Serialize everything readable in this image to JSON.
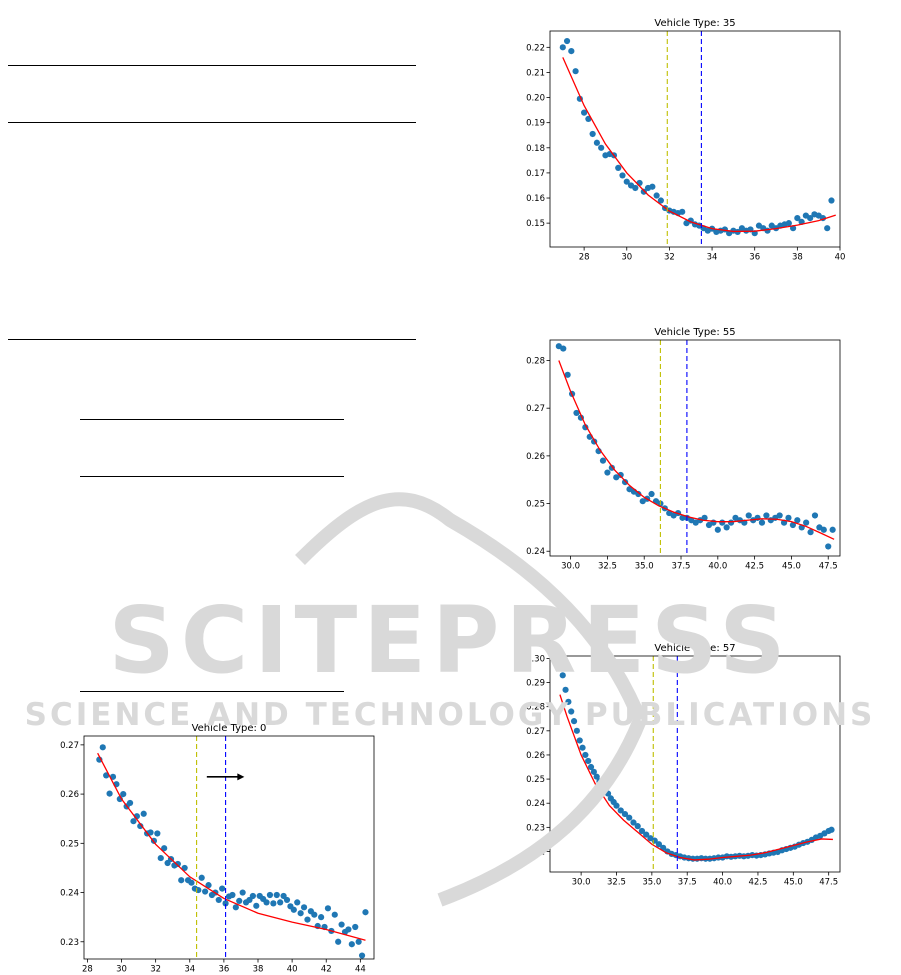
{
  "watermark": {
    "line1": "SCITEPRESS",
    "line2": "SCIENCE AND TECHNOLOGY PUBLICATIONS"
  },
  "colors": {
    "points": "#1f77b4",
    "fit": "#ff0000",
    "yellow_line": "#bfbf00",
    "blue_line": "#0000ff"
  },
  "chart_data": [
    {
      "type": "scatter",
      "title": "Vehicle Type: 0",
      "xlim": [
        27.8,
        44.8
      ],
      "ylim": [
        0.2265,
        0.2718
      ],
      "xticks": [
        "28",
        "30",
        "32",
        "34",
        "36",
        "38",
        "40",
        "42",
        "44"
      ],
      "yticks": [
        "0.23",
        "0.24",
        "0.25",
        "0.26",
        "0.27"
      ],
      "vlines": {
        "yellow": 34.4,
        "blue": 36.1
      },
      "arrow": {
        "from": 35.0,
        "to": 37.2,
        "y": 0.2635
      },
      "fit": {
        "x": [
          28.6,
          30,
          32,
          34,
          36,
          38,
          40,
          42,
          44.3
        ],
        "y": [
          0.2683,
          0.259,
          0.2498,
          0.2432,
          0.2388,
          0.2358,
          0.234,
          0.2325,
          0.2303
        ]
      },
      "series": [
        {
          "x": [
            28.7,
            28.9,
            29.1,
            29.3,
            29.5,
            29.7,
            29.9,
            30.1,
            30.3,
            30.5,
            30.7,
            30.9,
            31.1,
            31.3,
            31.5,
            31.7,
            31.9,
            32.1,
            32.3,
            32.5,
            32.7,
            32.9,
            33.1,
            33.3,
            33.5,
            33.7,
            33.9,
            34.1,
            34.3,
            34.5,
            34.7,
            34.9,
            35.1,
            35.3,
            35.5,
            35.7,
            35.9,
            36.1,
            36.3,
            36.5,
            36.7,
            36.9,
            37.1,
            37.3,
            37.5,
            37.7,
            37.9,
            38.1,
            38.3,
            38.5,
            38.7,
            38.9,
            39.1,
            39.3,
            39.5,
            39.7,
            39.9,
            40.1,
            40.3,
            40.5,
            40.7,
            40.9,
            41.1,
            41.3,
            41.5,
            41.7,
            41.9,
            42.1,
            42.3,
            42.5,
            42.7,
            42.9,
            43.1,
            43.3,
            43.5,
            43.7,
            43.9,
            44.1,
            44.3
          ],
          "y": [
            0.267,
            0.2695,
            0.2638,
            0.2601,
            0.2635,
            0.262,
            0.259,
            0.26,
            0.2575,
            0.2582,
            0.2545,
            0.2555,
            0.2535,
            0.256,
            0.252,
            0.2522,
            0.2505,
            0.252,
            0.247,
            0.249,
            0.246,
            0.2468,
            0.2455,
            0.2458,
            0.2425,
            0.245,
            0.2425,
            0.242,
            0.2408,
            0.2405,
            0.243,
            0.2402,
            0.2415,
            0.2395,
            0.24,
            0.2385,
            0.2408,
            0.2378,
            0.2392,
            0.2395,
            0.237,
            0.2383,
            0.24,
            0.238,
            0.2385,
            0.2393,
            0.2373,
            0.2393,
            0.2387,
            0.238,
            0.2395,
            0.2378,
            0.2395,
            0.238,
            0.2393,
            0.2385,
            0.2372,
            0.2365,
            0.238,
            0.2358,
            0.237,
            0.2345,
            0.2362,
            0.2355,
            0.2332,
            0.235,
            0.233,
            0.2368,
            0.2322,
            0.2355,
            0.23,
            0.2335,
            0.232,
            0.2325,
            0.2295,
            0.233,
            0.23,
            0.2272,
            0.236
          ]
        }
      ]
    },
    {
      "type": "scatter",
      "title": "Vehicle Type: 35",
      "xlim": [
        26.4,
        40.0
      ],
      "ylim": [
        0.1405,
        0.2265
      ],
      "xticks": [
        "28",
        "30",
        "32",
        "34",
        "36",
        "38",
        "40"
      ],
      "yticks": [
        "0.15",
        "0.16",
        "0.17",
        "0.18",
        "0.19",
        "0.20",
        "0.21",
        "0.22"
      ],
      "vlines": {
        "yellow": 31.9,
        "blue": 33.5
      },
      "fit": {
        "x": [
          27.0,
          28,
          29,
          30,
          31,
          32,
          33,
          34,
          35,
          36,
          37,
          38,
          39,
          39.8
        ],
        "y": [
          0.216,
          0.1968,
          0.1815,
          0.17,
          0.1612,
          0.1548,
          0.1505,
          0.1478,
          0.1467,
          0.1468,
          0.1478,
          0.1492,
          0.151,
          0.1532
        ]
      },
      "series": [
        {
          "x": [
            27.0,
            27.2,
            27.4,
            27.6,
            27.8,
            28.0,
            28.2,
            28.4,
            28.6,
            28.8,
            29.0,
            29.2,
            29.4,
            29.6,
            29.8,
            30.0,
            30.2,
            30.4,
            30.6,
            30.8,
            31.0,
            31.2,
            31.4,
            31.6,
            31.8,
            32.0,
            32.2,
            32.4,
            32.6,
            32.8,
            33.0,
            33.2,
            33.4,
            33.6,
            33.8,
            34.0,
            34.2,
            34.4,
            34.6,
            34.8,
            35.0,
            35.2,
            35.4,
            35.6,
            35.8,
            36.0,
            36.2,
            36.4,
            36.6,
            36.8,
            37.0,
            37.2,
            37.4,
            37.6,
            37.8,
            38.0,
            38.2,
            38.4,
            38.6,
            38.8,
            39.0,
            39.2,
            39.4,
            39.6
          ],
          "y": [
            0.22,
            0.2225,
            0.2185,
            0.2105,
            0.1995,
            0.194,
            0.1915,
            0.1855,
            0.182,
            0.18,
            0.177,
            0.1775,
            0.177,
            0.172,
            0.169,
            0.1665,
            0.165,
            0.164,
            0.166,
            0.1625,
            0.164,
            0.1645,
            0.161,
            0.159,
            0.156,
            0.155,
            0.1545,
            0.154,
            0.1545,
            0.15,
            0.151,
            0.1495,
            0.149,
            0.148,
            0.147,
            0.1478,
            0.1465,
            0.147,
            0.1475,
            0.146,
            0.147,
            0.1465,
            0.148,
            0.147,
            0.1475,
            0.146,
            0.149,
            0.148,
            0.147,
            0.149,
            0.148,
            0.149,
            0.1495,
            0.15,
            0.148,
            0.152,
            0.1505,
            0.153,
            0.152,
            0.1535,
            0.153,
            0.152,
            0.148,
            0.159
          ]
        }
      ]
    },
    {
      "type": "scatter",
      "title": "Vehicle Type: 55",
      "xlim": [
        28.6,
        48.3
      ],
      "ylim": [
        0.239,
        0.2843
      ],
      "xticks": [
        "30.0",
        "32.5",
        "35.0",
        "37.5",
        "40.0",
        "42.5",
        "45.0",
        "47.5"
      ],
      "yticks": [
        "0.24",
        "0.25",
        "0.26",
        "0.27",
        "0.28"
      ],
      "vlines": {
        "yellow": 36.1,
        "blue": 37.9
      },
      "fit": {
        "x": [
          29.2,
          30,
          31,
          32,
          33,
          34,
          35,
          36,
          37,
          38,
          39,
          40,
          41,
          42,
          43,
          44,
          45,
          46,
          47,
          47.9
        ],
        "y": [
          0.28,
          0.2735,
          0.2665,
          0.2612,
          0.257,
          0.2538,
          0.2513,
          0.2495,
          0.2482,
          0.2472,
          0.2465,
          0.2462,
          0.2462,
          0.2465,
          0.2468,
          0.2467,
          0.2462,
          0.2452,
          0.2438,
          0.2425
        ]
      },
      "series": [
        {
          "x": [
            29.2,
            29.5,
            29.8,
            30.1,
            30.4,
            30.7,
            31.0,
            31.3,
            31.6,
            31.9,
            32.2,
            32.5,
            32.8,
            33.1,
            33.4,
            33.7,
            34.0,
            34.3,
            34.6,
            34.9,
            35.2,
            35.5,
            35.8,
            36.1,
            36.4,
            36.7,
            37.0,
            37.3,
            37.6,
            37.9,
            38.2,
            38.5,
            38.8,
            39.1,
            39.4,
            39.7,
            40.0,
            40.3,
            40.6,
            40.9,
            41.2,
            41.5,
            41.8,
            42.1,
            42.4,
            42.7,
            43.0,
            43.3,
            43.6,
            43.9,
            44.2,
            44.5,
            44.8,
            45.1,
            45.4,
            45.7,
            46.0,
            46.3,
            46.6,
            46.9,
            47.2,
            47.5,
            47.8
          ],
          "y": [
            0.283,
            0.2825,
            0.277,
            0.273,
            0.269,
            0.268,
            0.266,
            0.264,
            0.263,
            0.261,
            0.259,
            0.2565,
            0.2575,
            0.2555,
            0.256,
            0.2545,
            0.253,
            0.2525,
            0.252,
            0.2505,
            0.251,
            0.252,
            0.2505,
            0.25,
            0.249,
            0.248,
            0.2475,
            0.248,
            0.247,
            0.247,
            0.2465,
            0.246,
            0.2465,
            0.247,
            0.2455,
            0.246,
            0.2445,
            0.246,
            0.245,
            0.246,
            0.247,
            0.2465,
            0.246,
            0.2475,
            0.2465,
            0.247,
            0.246,
            0.2475,
            0.2465,
            0.247,
            0.2475,
            0.246,
            0.247,
            0.2455,
            0.2465,
            0.245,
            0.246,
            0.244,
            0.2475,
            0.245,
            0.2445,
            0.241,
            0.2445
          ]
        }
      ]
    },
    {
      "type": "scatter",
      "title": "Vehicle Type: 57",
      "xlim": [
        27.8,
        48.3
      ],
      "ylim": [
        0.2115,
        0.301
      ],
      "xticks": [
        "30.0",
        "32.5",
        "35.0",
        "37.5",
        "40.0",
        "42.5",
        "45.0",
        "47.5"
      ],
      "yticks": [
        "0.22",
        "0.23",
        "0.24",
        "0.25",
        "0.26",
        "0.27",
        "0.28",
        "0.29",
        "0.30"
      ],
      "vlines": {
        "yellow": 35.1,
        "blue": 36.8
      },
      "fit": {
        "x": [
          28.5,
          29,
          30,
          31,
          32,
          33,
          34,
          35,
          36,
          37,
          38,
          39,
          40,
          41,
          42,
          43,
          44,
          45,
          46,
          47,
          47.8
        ],
        "y": [
          0.285,
          0.276,
          0.26,
          0.248,
          0.239,
          0.233,
          0.228,
          0.223,
          0.2195,
          0.2175,
          0.2165,
          0.2168,
          0.2175,
          0.218,
          0.2185,
          0.2195,
          0.221,
          0.2225,
          0.224,
          0.2252,
          0.225
        ]
      },
      "series": [
        {
          "x": [
            28.5,
            28.7,
            28.9,
            29.1,
            29.3,
            29.5,
            29.7,
            29.9,
            30.1,
            30.3,
            30.5,
            30.7,
            30.9,
            31.1,
            31.3,
            31.5,
            31.7,
            31.9,
            32.1,
            32.3,
            32.5,
            32.8,
            33.1,
            33.4,
            33.7,
            34.0,
            34.3,
            34.6,
            34.9,
            35.2,
            35.5,
            35.8,
            36.1,
            36.4,
            36.7,
            37.0,
            37.3,
            37.6,
            37.9,
            38.2,
            38.5,
            38.8,
            39.1,
            39.4,
            39.7,
            40.0,
            40.3,
            40.6,
            40.9,
            41.2,
            41.5,
            41.8,
            42.1,
            42.4,
            42.7,
            43.0,
            43.3,
            43.6,
            43.9,
            44.2,
            44.5,
            44.8,
            45.1,
            45.4,
            45.7,
            46.0,
            46.3,
            46.6,
            46.9,
            47.2,
            47.5,
            47.7
          ],
          "y": [
            0.297,
            0.293,
            0.287,
            0.282,
            0.278,
            0.274,
            0.27,
            0.266,
            0.263,
            0.26,
            0.2575,
            0.255,
            0.253,
            0.251,
            0.249,
            0.247,
            0.2455,
            0.244,
            0.242,
            0.2405,
            0.239,
            0.237,
            0.2355,
            0.234,
            0.232,
            0.2305,
            0.2285,
            0.227,
            0.2255,
            0.2245,
            0.223,
            0.2215,
            0.22,
            0.219,
            0.2185,
            0.218,
            0.2175,
            0.2172,
            0.217,
            0.217,
            0.2172,
            0.217,
            0.217,
            0.2172,
            0.2175,
            0.2175,
            0.218,
            0.2178,
            0.218,
            0.2182,
            0.218,
            0.2182,
            0.2185,
            0.2183,
            0.2185,
            0.2188,
            0.2192,
            0.2195,
            0.2198,
            0.2205,
            0.221,
            0.2215,
            0.222,
            0.2228,
            0.2235,
            0.224,
            0.2248,
            0.2258,
            0.2265,
            0.2275,
            0.2285,
            0.229
          ]
        }
      ]
    }
  ]
}
